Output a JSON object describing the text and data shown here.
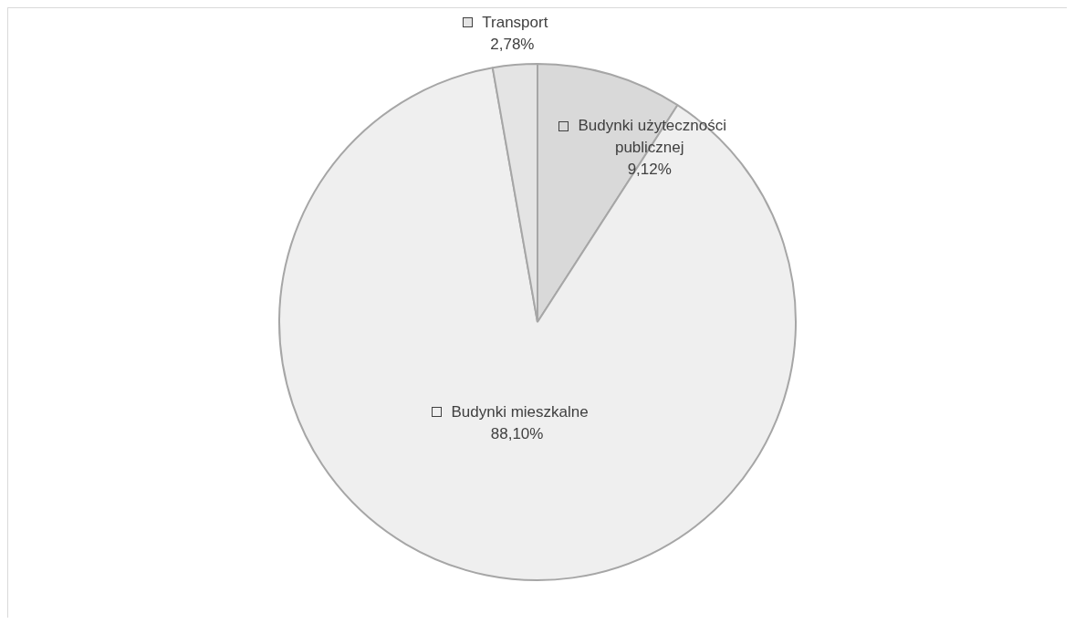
{
  "chart_data": {
    "type": "pie",
    "categories": [
      "Budynki użyteczności publicznej",
      "Budynki mieszkalne",
      "Transport"
    ],
    "values": [
      9.12,
      88.1,
      2.78
    ],
    "colors": [
      "#d9d9d9",
      "#efefef",
      "#e4e4e4"
    ],
    "value_labels": [
      "9,12%",
      "88,10%",
      "2,78%"
    ],
    "legend": "top"
  }
}
